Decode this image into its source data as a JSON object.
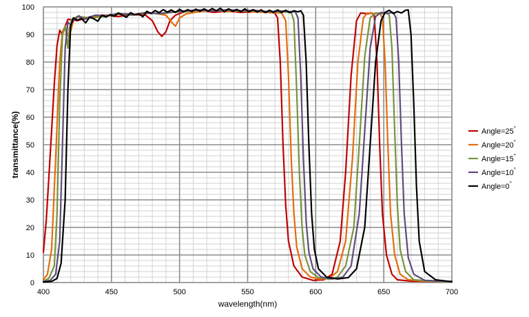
{
  "chart_data": {
    "type": "line",
    "title": "",
    "xlabel": "wavelength(nm)",
    "ylabel": "transmittance(%)",
    "xlim": [
      400,
      700
    ],
    "ylim": [
      0,
      100
    ],
    "x_ticks": [
      400,
      450,
      500,
      550,
      600,
      650,
      700
    ],
    "y_ticks": [
      0,
      10,
      20,
      30,
      40,
      50,
      60,
      70,
      80,
      90,
      100
    ],
    "grid": true,
    "minor_grid": true,
    "legend_position": "right",
    "series": [
      {
        "name": "Angle=25",
        "name_suffix": "°",
        "color": "#c00000",
        "points": [
          [
            400,
            11
          ],
          [
            402,
            22
          ],
          [
            404,
            38
          ],
          [
            406,
            55
          ],
          [
            408,
            72
          ],
          [
            410,
            86
          ],
          [
            412,
            91.5
          ],
          [
            414,
            90
          ],
          [
            416,
            93
          ],
          [
            418,
            95.5
          ],
          [
            425,
            95
          ],
          [
            435,
            96.5
          ],
          [
            445,
            97
          ],
          [
            455,
            96.5
          ],
          [
            465,
            97.2
          ],
          [
            475,
            97
          ],
          [
            480,
            95
          ],
          [
            484,
            91
          ],
          [
            487,
            89.3
          ],
          [
            490,
            91
          ],
          [
            493,
            95
          ],
          [
            497,
            97
          ],
          [
            505,
            98.5
          ],
          [
            515,
            98.8
          ],
          [
            525,
            98
          ],
          [
            535,
            98.5
          ],
          [
            545,
            98
          ],
          [
            555,
            98.2
          ],
          [
            565,
            98
          ],
          [
            570,
            97.8
          ],
          [
            572,
            96
          ],
          [
            574,
            80
          ],
          [
            576,
            50
          ],
          [
            578,
            28
          ],
          [
            580,
            15
          ],
          [
            584,
            6
          ],
          [
            590,
            2
          ],
          [
            598,
            0.8
          ],
          [
            606,
            1
          ],
          [
            612,
            3
          ],
          [
            618,
            15
          ],
          [
            622,
            40
          ],
          [
            626,
            75
          ],
          [
            630,
            95
          ],
          [
            633,
            97.8
          ],
          [
            638,
            97.5
          ],
          [
            641,
            97.8
          ],
          [
            643,
            97
          ],
          [
            645,
            80
          ],
          [
            647,
            50
          ],
          [
            649,
            25
          ],
          [
            652,
            10
          ],
          [
            656,
            3
          ],
          [
            660,
            1
          ],
          [
            670,
            0.5
          ],
          [
            690,
            0.4
          ],
          [
            700,
            0.4
          ]
        ]
      },
      {
        "name": "Angle=20",
        "name_suffix": "°",
        "color": "#e46c0a",
        "points": [
          [
            400,
            1
          ],
          [
            403,
            3
          ],
          [
            406,
            12
          ],
          [
            409,
            45
          ],
          [
            412,
            80
          ],
          [
            414,
            91
          ],
          [
            416,
            93
          ],
          [
            418,
            89.5
          ],
          [
            420,
            91
          ],
          [
            422,
            95
          ],
          [
            425,
            96.5
          ],
          [
            430,
            95.5
          ],
          [
            440,
            96.8
          ],
          [
            450,
            97
          ],
          [
            460,
            97.5
          ],
          [
            470,
            97.3
          ],
          [
            480,
            97.8
          ],
          [
            490,
            97
          ],
          [
            495,
            94
          ],
          [
            497,
            93
          ],
          [
            500,
            96
          ],
          [
            505,
            97.5
          ],
          [
            515,
            98.3
          ],
          [
            525,
            98.7
          ],
          [
            535,
            98.3
          ],
          [
            545,
            98.5
          ],
          [
            555,
            98.2
          ],
          [
            565,
            98
          ],
          [
            575,
            97.8
          ],
          [
            578,
            95
          ],
          [
            580,
            75
          ],
          [
            582,
            45
          ],
          [
            584,
            25
          ],
          [
            586,
            13
          ],
          [
            590,
            5
          ],
          [
            596,
            2
          ],
          [
            603,
            1.2
          ],
          [
            610,
            1.5
          ],
          [
            616,
            4
          ],
          [
            622,
            15
          ],
          [
            627,
            45
          ],
          [
            631,
            80
          ],
          [
            635,
            96
          ],
          [
            638,
            97.8
          ],
          [
            643,
            97.5
          ],
          [
            647,
            97.8
          ],
          [
            649,
            96
          ],
          [
            651,
            80
          ],
          [
            653,
            50
          ],
          [
            655,
            25
          ],
          [
            658,
            10
          ],
          [
            662,
            3
          ],
          [
            668,
            1
          ],
          [
            680,
            0.5
          ],
          [
            700,
            0.4
          ]
        ]
      },
      {
        "name": "Angle=15",
        "name_suffix": "°",
        "color": "#77933c",
        "points": [
          [
            400,
            0.5
          ],
          [
            404,
            1.5
          ],
          [
            408,
            6
          ],
          [
            410,
            25
          ],
          [
            412,
            65
          ],
          [
            414,
            90
          ],
          [
            416,
            93
          ],
          [
            418,
            85
          ],
          [
            419,
            92
          ],
          [
            421,
            95.5
          ],
          [
            425,
            96.5
          ],
          [
            435,
            96
          ],
          [
            445,
            96.5
          ],
          [
            455,
            97.5
          ],
          [
            465,
            97
          ],
          [
            475,
            98
          ],
          [
            485,
            97.5
          ],
          [
            495,
            98
          ],
          [
            505,
            98.3
          ],
          [
            515,
            98.7
          ],
          [
            525,
            98.5
          ],
          [
            535,
            98.8
          ],
          [
            545,
            98.4
          ],
          [
            555,
            98.6
          ],
          [
            565,
            98.3
          ],
          [
            575,
            98.2
          ],
          [
            582,
            98
          ],
          [
            584,
            95
          ],
          [
            586,
            70
          ],
          [
            588,
            40
          ],
          [
            590,
            20
          ],
          [
            592,
            10
          ],
          [
            596,
            4
          ],
          [
            602,
            1.8
          ],
          [
            610,
            1.2
          ],
          [
            616,
            2
          ],
          [
            622,
            6
          ],
          [
            628,
            20
          ],
          [
            632,
            50
          ],
          [
            636,
            82
          ],
          [
            640,
            96
          ],
          [
            644,
            97.8
          ],
          [
            648,
            97.5
          ],
          [
            652,
            98
          ],
          [
            654,
            97
          ],
          [
            656,
            85
          ],
          [
            658,
            55
          ],
          [
            660,
            28
          ],
          [
            662,
            12
          ],
          [
            666,
            4
          ],
          [
            672,
            1
          ],
          [
            685,
            0.5
          ],
          [
            700,
            0.4
          ]
        ]
      },
      {
        "name": "Angle=10",
        "name_suffix": "°",
        "color": "#604a7b",
        "points": [
          [
            400,
            0.3
          ],
          [
            405,
            0.8
          ],
          [
            409,
            3
          ],
          [
            412,
            15
          ],
          [
            414,
            50
          ],
          [
            416,
            85
          ],
          [
            418,
            94.5
          ],
          [
            420,
            93.5
          ],
          [
            422,
            95
          ],
          [
            426,
            96.8
          ],
          [
            430,
            95.5
          ],
          [
            438,
            97
          ],
          [
            446,
            96.8
          ],
          [
            455,
            97.6
          ],
          [
            465,
            97.2
          ],
          [
            475,
            97.8
          ],
          [
            485,
            97.6
          ],
          [
            495,
            98.2
          ],
          [
            505,
            98.6
          ],
          [
            515,
            98.9
          ],
          [
            525,
            98.4
          ],
          [
            535,
            99
          ],
          [
            545,
            98.6
          ],
          [
            555,
            98.8
          ],
          [
            565,
            98.3
          ],
          [
            575,
            98.5
          ],
          [
            585,
            98.2
          ],
          [
            587,
            96
          ],
          [
            589,
            75
          ],
          [
            591,
            45
          ],
          [
            593,
            22
          ],
          [
            595,
            11
          ],
          [
            598,
            5
          ],
          [
            604,
            2
          ],
          [
            612,
            1.3
          ],
          [
            620,
            2
          ],
          [
            626,
            6
          ],
          [
            632,
            25
          ],
          [
            636,
            55
          ],
          [
            640,
            85
          ],
          [
            644,
            96.5
          ],
          [
            648,
            98
          ],
          [
            652,
            97.6
          ],
          [
            657,
            98
          ],
          [
            659,
            96
          ],
          [
            661,
            80
          ],
          [
            663,
            50
          ],
          [
            665,
            25
          ],
          [
            668,
            9
          ],
          [
            672,
            3
          ],
          [
            680,
            0.8
          ],
          [
            700,
            0.4
          ]
        ]
      },
      {
        "name": "Angle=0",
        "name_suffix": "°",
        "color": "#000000",
        "points": [
          [
            400,
            0.2
          ],
          [
            406,
            0.4
          ],
          [
            410,
            1.5
          ],
          [
            413,
            7
          ],
          [
            416,
            30
          ],
          [
            418,
            70
          ],
          [
            420,
            93
          ],
          [
            422,
            96
          ],
          [
            425,
            95.2
          ],
          [
            428,
            95.8
          ],
          [
            431,
            94.2
          ],
          [
            434,
            96.3
          ],
          [
            437,
            95.7
          ],
          [
            440,
            94.8
          ],
          [
            443,
            97
          ],
          [
            446,
            96.3
          ],
          [
            449,
            97.2
          ],
          [
            452,
            96.6
          ],
          [
            455,
            97.8
          ],
          [
            458,
            97
          ],
          [
            461,
            96.2
          ],
          [
            464,
            97.9
          ],
          [
            467,
            97.1
          ],
          [
            470,
            97.5
          ],
          [
            473,
            96.4
          ],
          [
            476,
            98.4
          ],
          [
            479,
            97.6
          ],
          [
            482,
            98.7
          ],
          [
            485,
            97.9
          ],
          [
            488,
            99
          ],
          [
            491,
            98.1
          ],
          [
            494,
            98.9
          ],
          [
            497,
            98
          ],
          [
            500,
            99.1
          ],
          [
            503,
            98.2
          ],
          [
            506,
            99
          ],
          [
            509,
            98.3
          ],
          [
            512,
            99.2
          ],
          [
            515,
            98.4
          ],
          [
            518,
            99.3
          ],
          [
            521,
            98.5
          ],
          [
            524,
            99.4
          ],
          [
            527,
            98.6
          ],
          [
            530,
            99.5
          ],
          [
            533,
            98.2
          ],
          [
            536,
            99.3
          ],
          [
            539,
            98.4
          ],
          [
            542,
            99.1
          ],
          [
            545,
            98.3
          ],
          [
            548,
            99.3
          ],
          [
            551,
            98.2
          ],
          [
            554,
            99
          ],
          [
            557,
            98.1
          ],
          [
            560,
            98.9
          ],
          [
            563,
            97.9
          ],
          [
            566,
            98.8
          ],
          [
            569,
            98
          ],
          [
            572,
            98.9
          ],
          [
            575,
            98
          ],
          [
            578,
            98.8
          ],
          [
            581,
            97.9
          ],
          [
            584,
            98.6
          ],
          [
            587,
            98.2
          ],
          [
            589,
            98.6
          ],
          [
            591,
            97
          ],
          [
            593,
            80
          ],
          [
            595,
            50
          ],
          [
            597,
            25
          ],
          [
            599,
            12
          ],
          [
            602,
            5
          ],
          [
            608,
            2
          ],
          [
            616,
            1.3
          ],
          [
            624,
            1.8
          ],
          [
            630,
            5
          ],
          [
            636,
            20
          ],
          [
            640,
            50
          ],
          [
            644,
            80
          ],
          [
            648,
            95
          ],
          [
            651,
            98
          ],
          [
            654,
            98.8
          ],
          [
            657,
            97.6
          ],
          [
            660,
            98.3
          ],
          [
            663,
            97.8
          ],
          [
            666,
            98.8
          ],
          [
            668,
            98.9
          ],
          [
            670,
            90
          ],
          [
            672,
            65
          ],
          [
            674,
            35
          ],
          [
            676,
            15
          ],
          [
            680,
            4
          ],
          [
            688,
            1
          ],
          [
            700,
            0.3
          ]
        ]
      }
    ]
  }
}
